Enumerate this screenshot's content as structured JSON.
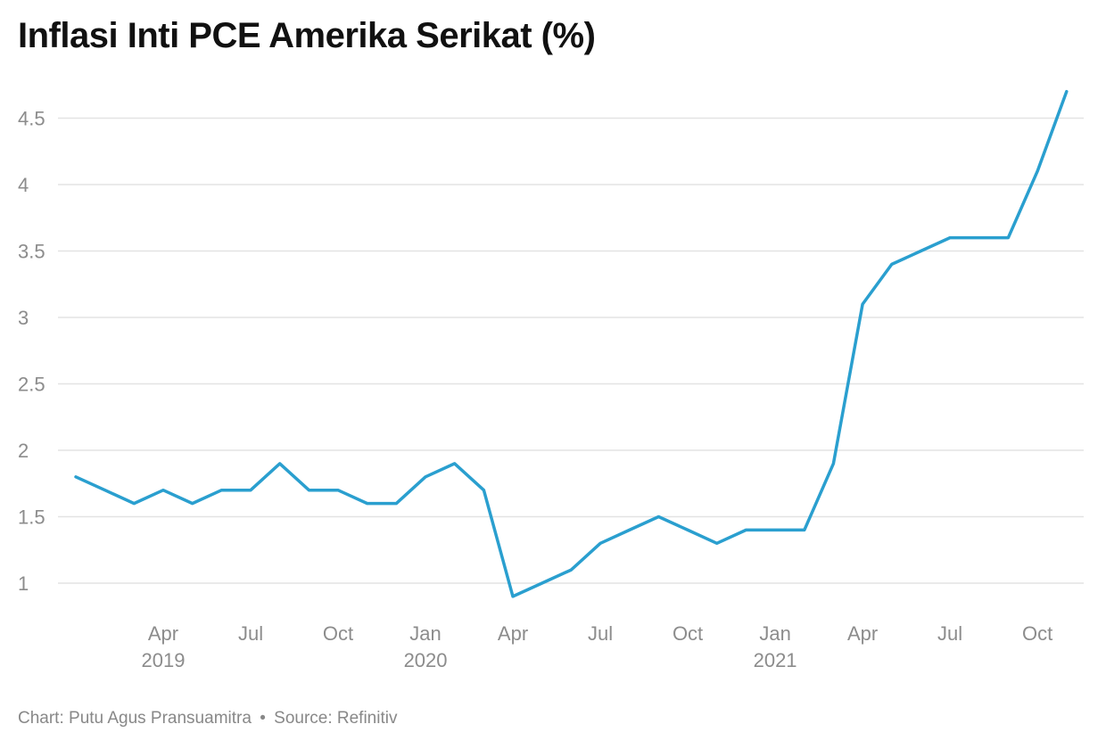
{
  "title": "Inflasi Inti PCE Amerika Serikat (%)",
  "footer": {
    "credit": "Chart: Putu Agus Pransuamitra",
    "separator": "•",
    "source": "Source: Refinitiv"
  },
  "colors": {
    "line": "#2a9fcf",
    "grid": "#e3e3e3",
    "axis_text": "#8c8c8c",
    "title": "#111111"
  },
  "chart_data": {
    "type": "line",
    "title": "Inflasi Inti PCE Amerika Serikat (%)",
    "xlabel": "",
    "ylabel": "",
    "ylim": [
      0.8,
      4.75
    ],
    "yticks": [
      1,
      1.5,
      2,
      2.5,
      3,
      3.5,
      4,
      4.5
    ],
    "ytick_labels": [
      "1",
      "1.5",
      "2",
      "2.5",
      "3",
      "3.5",
      "4",
      "4.5"
    ],
    "grid": true,
    "legend": "none",
    "x_ticks": [
      {
        "month": "2019-04",
        "label": "Apr",
        "year": "2019"
      },
      {
        "month": "2019-07",
        "label": "Jul",
        "year": ""
      },
      {
        "month": "2019-10",
        "label": "Oct",
        "year": ""
      },
      {
        "month": "2020-01",
        "label": "Jan",
        "year": "2020"
      },
      {
        "month": "2020-04",
        "label": "Apr",
        "year": ""
      },
      {
        "month": "2020-07",
        "label": "Jul",
        "year": ""
      },
      {
        "month": "2020-10",
        "label": "Oct",
        "year": ""
      },
      {
        "month": "2021-01",
        "label": "Jan",
        "year": "2021"
      },
      {
        "month": "2021-04",
        "label": "Apr",
        "year": ""
      },
      {
        "month": "2021-07",
        "label": "Jul",
        "year": ""
      },
      {
        "month": "2021-10",
        "label": "Oct",
        "year": ""
      }
    ],
    "series": [
      {
        "x": [
          "2019-01",
          "2019-02",
          "2019-03",
          "2019-04",
          "2019-05",
          "2019-06",
          "2019-07",
          "2019-08",
          "2019-09",
          "2019-10",
          "2019-11",
          "2019-12",
          "2020-01",
          "2020-02",
          "2020-03",
          "2020-04",
          "2020-05",
          "2020-06",
          "2020-07",
          "2020-08",
          "2020-09",
          "2020-10",
          "2020-11",
          "2020-12",
          "2021-01",
          "2021-02",
          "2021-03",
          "2021-04",
          "2021-05",
          "2021-06",
          "2021-07",
          "2021-08",
          "2021-09",
          "2021-10",
          "2021-11",
          "2021-12"
        ],
        "values": [
          1.8,
          1.7,
          1.6,
          1.7,
          1.6,
          1.7,
          1.7,
          1.9,
          1.7,
          1.7,
          1.6,
          1.6,
          1.8,
          1.9,
          1.7,
          0.9,
          1.0,
          1.1,
          1.3,
          1.4,
          1.5,
          1.4,
          1.3,
          1.4,
          1.4,
          1.4,
          1.9,
          3.1,
          3.4,
          3.5,
          3.6,
          3.6,
          3.6,
          4.1,
          4.7,
          null
        ]
      }
    ]
  }
}
